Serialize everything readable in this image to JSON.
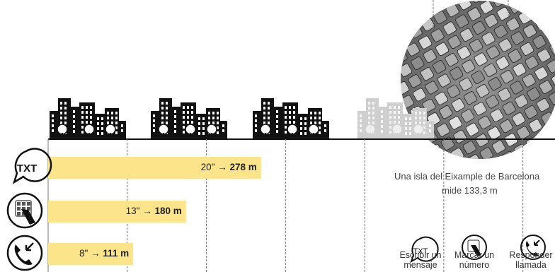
{
  "chart_data": {
    "type": "bar",
    "orientation": "horizontal",
    "title": "",
    "xlabel": "",
    "ylabel": "",
    "unit": "m",
    "xlim": [
      0,
      880
    ],
    "grid": true,
    "categories": [
      "TXT",
      "Marcar un número",
      "Responder llamada"
    ],
    "seconds_labels": [
      "20\"",
      "13\"",
      "8\""
    ],
    "values": [
      278,
      180,
      111
    ],
    "value_labels": [
      "278 m",
      "180 m",
      "111 m"
    ],
    "bar_color": "#FCE48A",
    "annotations": {
      "block_caption_line1": "Una isla del Eixample de Barcelona",
      "block_caption_line2": "mide 133,3 m",
      "block_length_m": 133.3
    },
    "legend": [
      {
        "icon": "txt-bubble-icon",
        "line1": "Escribir un",
        "line2": "mensaje"
      },
      {
        "icon": "phone-keypad-icon",
        "line1": "Marcar un",
        "line2": "número"
      },
      {
        "icon": "phone-incoming-icon",
        "line1": "Responder",
        "line2": "llamada"
      }
    ]
  },
  "icons": {
    "row1_text": "TXT",
    "legend1_text": "TXT"
  }
}
